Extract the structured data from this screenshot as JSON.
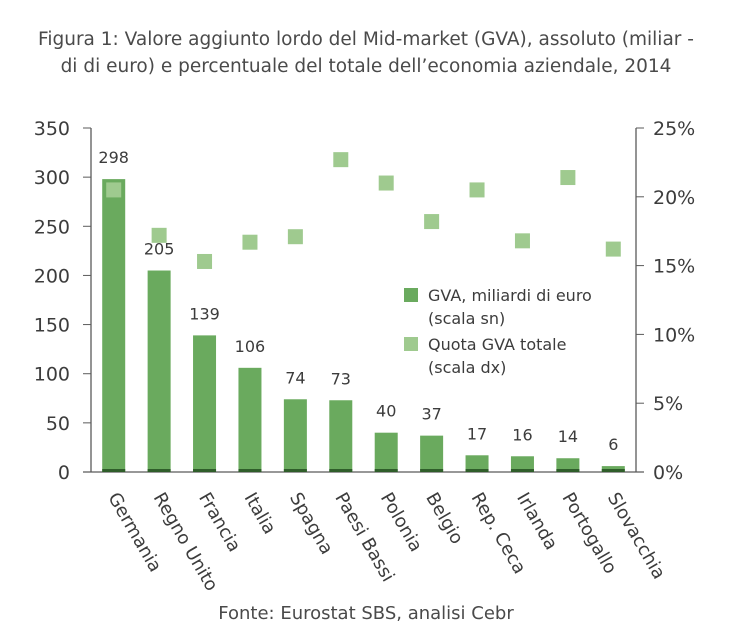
{
  "title_lines": [
    "Figura 1: Valore aggiunto lordo del Mid-market (GVA), assoluto (miliar -",
    "di di euro) e percentuale del totale dell’economia aziendale, 2014"
  ],
  "source": "Fonte: Eurostat SBS, analisi Cebr",
  "colors": {
    "bar": "#6aaa5e",
    "bar_base": "#2f5e2a",
    "square": "#9fca8f",
    "axis": "#5a5a5a"
  },
  "chart_data": {
    "type": "bar",
    "title": "Figura 1: Valore aggiunto lordo del Mid-market (GVA), assoluto (miliar - di di euro) e percentuale del totale dell’economia aziendale, 2014",
    "categories": [
      "Germania",
      "Regno Unito",
      "Francia",
      "Italia",
      "Spagna",
      "Paesi Bassi",
      "Polonia",
      "Belgio",
      "Rep. Ceca",
      "Irlanda",
      "Portogallo",
      "Slovacchia"
    ],
    "series": [
      {
        "name": "GVA, miliardi di euro (scala sn)",
        "type": "bar",
        "axis": "left",
        "values": [
          298,
          205,
          139,
          106,
          74,
          73,
          40,
          37,
          17,
          16,
          14,
          6
        ]
      },
      {
        "name": "Quota GVA totale (scala dx)",
        "type": "scatter",
        "axis": "right",
        "values": [
          20.5,
          17.2,
          15.3,
          16.7,
          17.1,
          22.7,
          21.0,
          18.2,
          20.5,
          16.8,
          21.4,
          16.2
        ]
      }
    ],
    "y_left": {
      "min": 0,
      "max": 350,
      "ticks": [
        "0",
        "50",
        "100",
        "150",
        "200",
        "250",
        "300",
        "350"
      ]
    },
    "y_right": {
      "min": 0,
      "max": 25,
      "ticks": [
        "0%",
        "5%",
        "10%",
        "15%",
        "20%",
        "25%"
      ]
    },
    "data_labels": [
      "298",
      "205",
      "139",
      "106",
      "74",
      "73",
      "40",
      "37",
      "17",
      "16",
      "14",
      "6"
    ],
    "legend": [
      "GVA, miliardi di euro",
      "(scala sn)",
      "Quota GVA totale",
      "(scala dx)"
    ],
    "legend_position": "center-right",
    "grid": false
  }
}
